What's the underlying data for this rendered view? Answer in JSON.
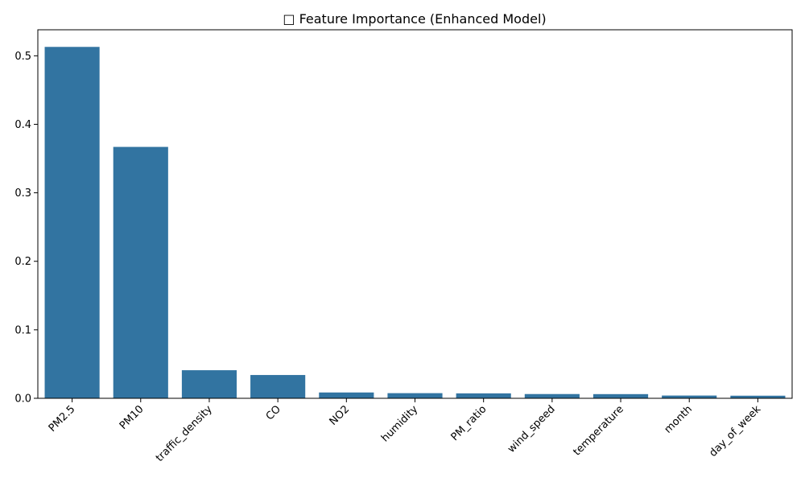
{
  "chart_data": {
    "type": "bar",
    "title": "□ Feature Importance (Enhanced Model)",
    "xlabel": "",
    "ylabel": "",
    "categories": [
      "PM2.5",
      "PM10",
      "traffic_density",
      "CO",
      "NO2",
      "humidity",
      "PM_ratio",
      "wind_speed",
      "temperature",
      "month",
      "day_of_week"
    ],
    "values": [
      0.513,
      0.367,
      0.041,
      0.034,
      0.0085,
      0.0075,
      0.0072,
      0.0062,
      0.0061,
      0.004,
      0.0038
    ],
    "ylim": [
      0,
      0.538
    ],
    "yticks": [
      0.0,
      0.1,
      0.2,
      0.3,
      0.4,
      0.5
    ],
    "ytick_labels": [
      "0.0",
      "0.1",
      "0.2",
      "0.3",
      "0.4",
      "0.5"
    ],
    "xtick_rotation": 45,
    "grid": false,
    "legend": "none",
    "bar_color": "#3274a1"
  }
}
